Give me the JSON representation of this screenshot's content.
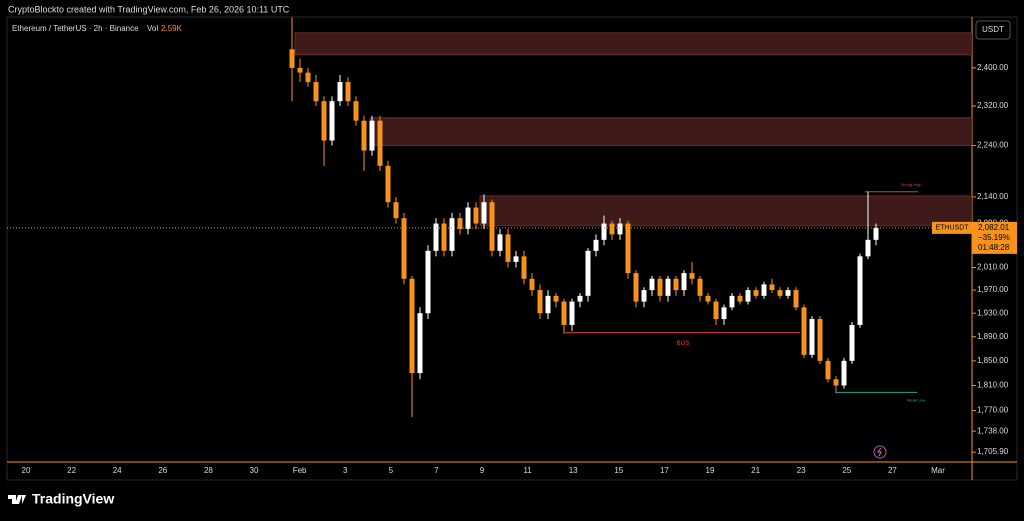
{
  "watermark": "CryptoBlockto created with TradingView.com, Feb 26, 2026 10:11 UTC",
  "logo": "TradingView",
  "chart_data": {
    "type": "candlestick",
    "title": "Ethereum / TetherUS · 2h · Binance",
    "volume_label": "Vol",
    "volume": "2.59K",
    "currency": "USDT",
    "log": true,
    "up_color": "#ffffff",
    "down_color": "#f7931a",
    "open": [
      2440,
      2400,
      2390,
      2370,
      2330,
      2250,
      2330,
      2370,
      2330,
      2290,
      2230,
      2290,
      2200,
      2130,
      2100,
      1990,
      1830,
      1930,
      2040,
      2090,
      2040,
      2100,
      2080,
      2120,
      2090,
      2130,
      2040,
      2070,
      2020,
      2030,
      1990,
      1970,
      1930,
      1960,
      1950,
      1910,
      1950,
      1960,
      2040,
      2060,
      2090,
      2070,
      2090,
      2000,
      1950,
      1970,
      1990,
      1960,
      1990,
      1970,
      2000,
      1990,
      1960,
      1950,
      1920,
      1940,
      1960,
      1950,
      1970,
      1960,
      1980,
      1970,
      1960,
      1970,
      1940,
      1860,
      1920,
      1850,
      1820,
      1810,
      1850,
      1910,
      2030,
      2060
    ],
    "high": [
      2510,
      2420,
      2400,
      2385,
      2340,
      2340,
      2385,
      2380,
      2340,
      2300,
      2300,
      2300,
      2210,
      2140,
      2110,
      1995,
      1940,
      2050,
      2100,
      2100,
      2110,
      2110,
      2130,
      2130,
      2145,
      2135,
      2080,
      2080,
      2040,
      2040,
      2000,
      1980,
      1970,
      1965,
      1955,
      1955,
      1965,
      2045,
      2070,
      2105,
      2095,
      2100,
      2095,
      2005,
      1975,
      1995,
      1995,
      1995,
      1995,
      2005,
      2020,
      1995,
      1965,
      1955,
      1945,
      1965,
      1965,
      1975,
      1975,
      1985,
      1990,
      1975,
      1975,
      1975,
      1945,
      1925,
      1925,
      1855,
      1825,
      1855,
      1915,
      2035,
      2150,
      2090
    ],
    "low": [
      2330,
      2370,
      2360,
      2320,
      2200,
      2240,
      2320,
      2320,
      2280,
      2190,
      2220,
      2190,
      2120,
      2090,
      1980,
      1760,
      1820,
      1920,
      2030,
      2030,
      2030,
      2070,
      2070,
      2080,
      2080,
      2030,
      2030,
      2010,
      2010,
      1980,
      1960,
      1920,
      1920,
      1940,
      1895,
      1900,
      1940,
      1950,
      2030,
      2050,
      2060,
      2060,
      1990,
      1940,
      1940,
      1960,
      1950,
      1950,
      1960,
      1960,
      1980,
      1950,
      1945,
      1910,
      1910,
      1935,
      1945,
      1945,
      1955,
      1955,
      1965,
      1955,
      1955,
      1935,
      1855,
      1855,
      1845,
      1815,
      1800,
      1805,
      1845,
      1905,
      2025,
      2050
    ],
    "close": [
      2400,
      2390,
      2370,
      2330,
      2250,
      2330,
      2370,
      2330,
      2290,
      2230,
      2290,
      2200,
      2130,
      2100,
      1990,
      1830,
      1930,
      2040,
      2090,
      2040,
      2100,
      2080,
      2120,
      2090,
      2130,
      2040,
      2070,
      2020,
      2030,
      1990,
      1970,
      1930,
      1960,
      1950,
      1910,
      1950,
      1960,
      2040,
      2060,
      2090,
      2070,
      2090,
      2000,
      1950,
      1970,
      1990,
      1960,
      1990,
      1970,
      2000,
      1990,
      1960,
      1950,
      1920,
      1940,
      1960,
      1950,
      1970,
      1960,
      1980,
      1970,
      1960,
      1970,
      1940,
      1860,
      1920,
      1850,
      1820,
      1810,
      1850,
      1910,
      2030,
      2060,
      2082.01
    ],
    "ylim": [
      1691,
      2511
    ],
    "yticks": [
      {
        "value": 2400,
        "label": "2,400.00"
      },
      {
        "value": 2320,
        "label": "2,320.00"
      },
      {
        "value": 2240,
        "label": "2,240.00"
      },
      {
        "value": 2140,
        "label": "2,140.00"
      },
      {
        "value": 2090,
        "label": "2,090.00"
      },
      {
        "value": 2010,
        "label": "2,010.00"
      },
      {
        "value": 1970,
        "label": "1,970.00"
      },
      {
        "value": 1930,
        "label": "1,930.00"
      },
      {
        "value": 1890,
        "label": "1,890.00"
      },
      {
        "value": 1850,
        "label": "1,850.00"
      },
      {
        "value": 1810,
        "label": "1,810.00"
      },
      {
        "value": 1770,
        "label": "1,770.00"
      },
      {
        "value": 1738,
        "label": "1,738.00"
      },
      {
        "value": 1705.9,
        "label": "1,705.90"
      }
    ],
    "xticks": [
      "20",
      "22",
      "24",
      "26",
      "28",
      "30",
      "Feb",
      "3",
      "5",
      "7",
      "9",
      "11",
      "13",
      "15",
      "17",
      "19",
      "21",
      "23",
      "25",
      "27",
      "Mar"
    ],
    "zones": [
      [
        2428,
        2476
      ],
      [
        2240,
        2296
      ],
      [
        2086,
        2142
      ]
    ],
    "levels": [
      {
        "label": "Strong High",
        "value": 2150,
        "color": "#e53935"
      },
      {
        "label": "BOS",
        "value": 1897,
        "color": "#e53935"
      },
      {
        "label": "Weak Low",
        "value": 1799,
        "color": "#26a69a"
      }
    ],
    "last_price": {
      "symbol": "ETHUSDT",
      "value": 2082.01,
      "value_label": "2,082.01",
      "change": "−35.19%",
      "countdown": "01:48:28"
    }
  }
}
